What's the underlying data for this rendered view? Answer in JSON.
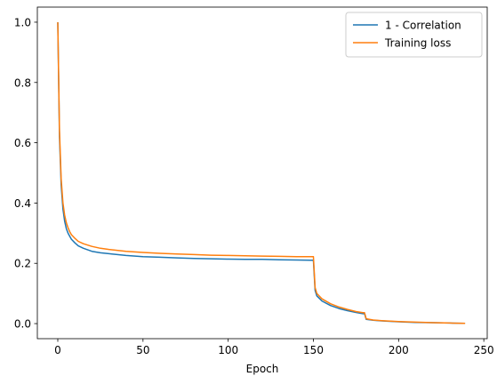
{
  "chart_data": {
    "type": "line",
    "title": "",
    "xlabel": "Epoch",
    "ylabel": "",
    "xlim": [
      -12,
      252
    ],
    "ylim": [
      -0.05,
      1.05
    ],
    "xticks": [
      0,
      50,
      100,
      150,
      200,
      250
    ],
    "xtick_labels": [
      "0",
      "50",
      "100",
      "150",
      "200",
      "250"
    ],
    "yticks": [
      0.0,
      0.2,
      0.4,
      0.6,
      0.8,
      1.0
    ],
    "ytick_labels": [
      "0.0",
      "0.2",
      "0.4",
      "0.6",
      "0.8",
      "1.0"
    ],
    "grid": false,
    "legend_position": "upper-right",
    "series": [
      {
        "name": "1 - Correlation",
        "color": "#1f77b4",
        "x": [
          0,
          1,
          2,
          3,
          4,
          5,
          6,
          7,
          8,
          10,
          12,
          15,
          20,
          25,
          30,
          40,
          50,
          60,
          70,
          80,
          90,
          100,
          110,
          120,
          130,
          140,
          148,
          149,
          150,
          151,
          152,
          155,
          160,
          165,
          170,
          175,
          179,
          180,
          181,
          185,
          190,
          200,
          210,
          220,
          230,
          239
        ],
        "y": [
          1.0,
          0.62,
          0.46,
          0.38,
          0.34,
          0.315,
          0.3,
          0.29,
          0.28,
          0.268,
          0.258,
          0.25,
          0.24,
          0.235,
          0.232,
          0.226,
          0.222,
          0.22,
          0.218,
          0.216,
          0.215,
          0.214,
          0.213,
          0.213,
          0.212,
          0.211,
          0.21,
          0.21,
          0.21,
          0.11,
          0.092,
          0.075,
          0.06,
          0.05,
          0.043,
          0.037,
          0.033,
          0.033,
          0.014,
          0.011,
          0.009,
          0.006,
          0.004,
          0.003,
          0.002,
          0.001
        ]
      },
      {
        "name": "Training loss",
        "color": "#ff7f0e",
        "x": [
          0,
          1,
          2,
          3,
          4,
          5,
          6,
          7,
          8,
          10,
          12,
          15,
          20,
          25,
          30,
          40,
          50,
          60,
          70,
          80,
          90,
          100,
          110,
          120,
          130,
          140,
          148,
          149,
          150,
          151,
          152,
          155,
          160,
          165,
          170,
          175,
          179,
          180,
          181,
          185,
          190,
          200,
          210,
          220,
          230,
          239
        ],
        "y": [
          1.0,
          0.64,
          0.48,
          0.4,
          0.36,
          0.335,
          0.318,
          0.305,
          0.295,
          0.283,
          0.273,
          0.265,
          0.256,
          0.25,
          0.246,
          0.24,
          0.236,
          0.233,
          0.231,
          0.229,
          0.227,
          0.226,
          0.225,
          0.224,
          0.223,
          0.222,
          0.222,
          0.222,
          0.222,
          0.12,
          0.1,
          0.082,
          0.066,
          0.055,
          0.047,
          0.04,
          0.036,
          0.036,
          0.016,
          0.012,
          0.01,
          0.007,
          0.005,
          0.003,
          0.002,
          0.001
        ]
      }
    ]
  }
}
